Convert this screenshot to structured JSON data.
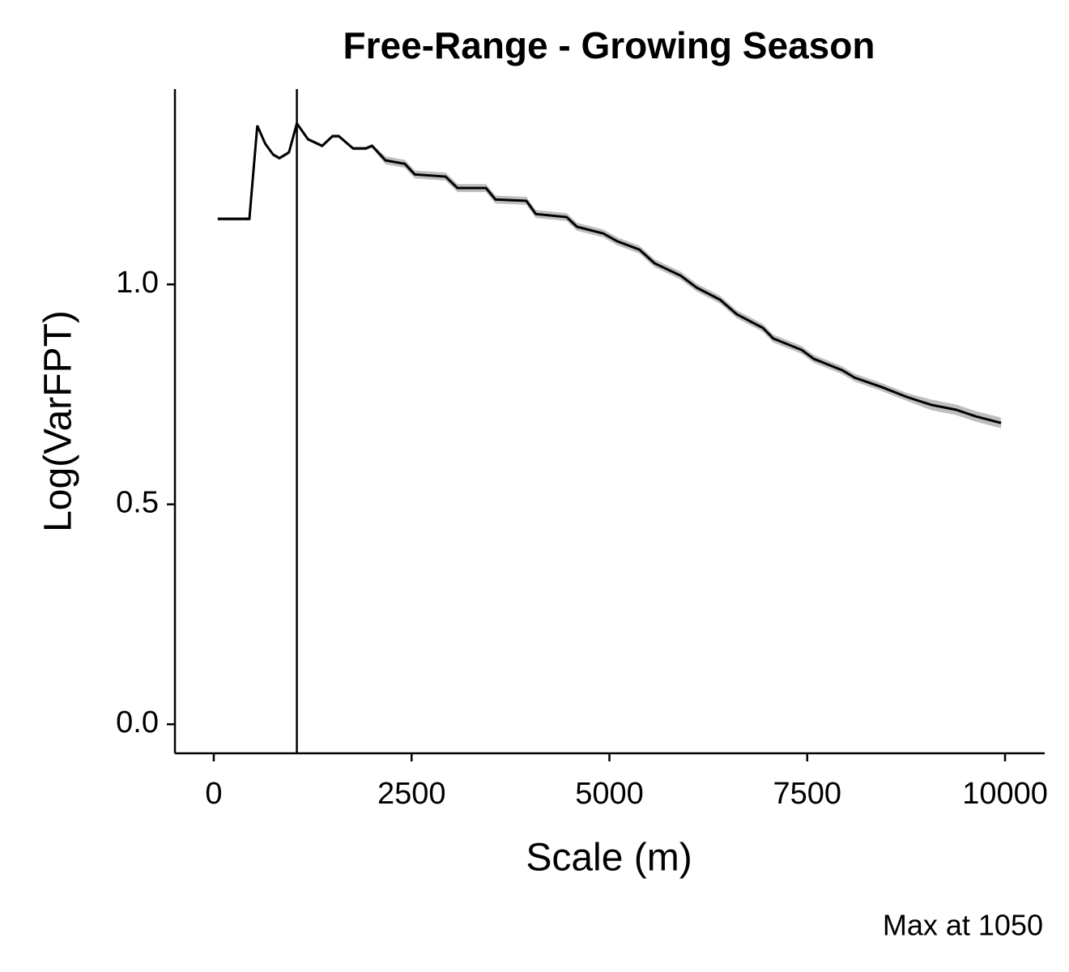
{
  "chart_data": {
    "type": "line",
    "title": "Free-Range - Growing Season",
    "x_label": "Scale (m)",
    "y_label": "Log(VarFPT)",
    "caption": "Max at 1050",
    "color": "#000000",
    "ribbon_color": "#bebebe",
    "vline": 1050,
    "x": [
      50,
      450,
      550,
      650,
      750,
      830,
      950,
      1050,
      1190,
      1370,
      1500,
      1580,
      1760,
      1920,
      2000,
      2170,
      2415,
      2540,
      2930,
      3080,
      3440,
      3560,
      3950,
      4070,
      4460,
      4590,
      4920,
      5100,
      5380,
      5570,
      5900,
      6100,
      6400,
      6610,
      6940,
      7070,
      7430,
      7580,
      7940,
      8100,
      8450,
      8760,
      9070,
      9380,
      9630,
      9950
    ],
    "values": [
      1.149,
      1.149,
      1.361,
      1.32,
      1.295,
      1.287,
      1.3,
      1.366,
      1.33,
      1.315,
      1.337,
      1.337,
      1.309,
      1.309,
      1.315,
      1.282,
      1.274,
      1.25,
      1.245,
      1.219,
      1.219,
      1.193,
      1.19,
      1.16,
      1.153,
      1.131,
      1.116,
      1.098,
      1.079,
      1.048,
      1.02,
      0.993,
      0.965,
      0.932,
      0.901,
      0.877,
      0.851,
      0.831,
      0.805,
      0.788,
      0.766,
      0.744,
      0.726,
      0.715,
      0.7,
      0.685
    ],
    "upper": [
      1.153,
      1.153,
      1.365,
      1.324,
      1.299,
      1.291,
      1.304,
      1.37,
      1.334,
      1.319,
      1.341,
      1.341,
      1.313,
      1.313,
      1.319,
      1.291,
      1.283,
      1.259,
      1.254,
      1.228,
      1.228,
      1.202,
      1.199,
      1.169,
      1.162,
      1.14,
      1.125,
      1.107,
      1.088,
      1.057,
      1.029,
      1.002,
      0.974,
      0.941,
      0.91,
      0.886,
      0.86,
      0.84,
      0.814,
      0.797,
      0.775,
      0.753,
      0.738,
      0.727,
      0.712,
      0.697
    ],
    "lower": [
      1.145,
      1.145,
      1.357,
      1.316,
      1.291,
      1.283,
      1.296,
      1.362,
      1.326,
      1.311,
      1.333,
      1.333,
      1.305,
      1.305,
      1.311,
      1.273,
      1.265,
      1.241,
      1.236,
      1.21,
      1.21,
      1.184,
      1.181,
      1.151,
      1.144,
      1.122,
      1.107,
      1.089,
      1.07,
      1.039,
      1.011,
      0.984,
      0.956,
      0.923,
      0.892,
      0.868,
      0.842,
      0.822,
      0.796,
      0.779,
      0.757,
      0.735,
      0.714,
      0.703,
      0.688,
      0.673
    ],
    "xlim": [
      -491,
      10501
    ],
    "ylim": [
      -0.066,
      1.444
    ],
    "xticks": [
      0,
      2500,
      5000,
      7500,
      10000
    ],
    "yticks": [
      {
        "value": 0,
        "label": "0.0"
      },
      {
        "value": 0.5,
        "label": "0.5"
      },
      {
        "value": 1,
        "label": "1.0"
      }
    ]
  }
}
